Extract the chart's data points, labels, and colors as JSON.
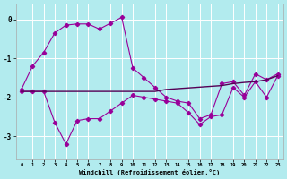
{
  "xlabel": "Windchill (Refroidissement éolien,°C)",
  "background_color": "#b2ebee",
  "line_color": "#990099",
  "line2_color": "#550055",
  "grid_color": "#ffffff",
  "xlim": [
    -0.5,
    23.5
  ],
  "ylim": [
    -3.6,
    0.4
  ],
  "yticks": [
    0,
    -1,
    -2,
    -3
  ],
  "xticks": [
    0,
    1,
    2,
    3,
    4,
    5,
    6,
    7,
    8,
    9,
    10,
    11,
    12,
    13,
    14,
    15,
    16,
    17,
    18,
    19,
    20,
    21,
    22,
    23
  ],
  "line1_x": [
    0,
    1,
    2,
    3,
    4,
    5,
    6,
    7,
    8,
    9,
    10,
    11,
    12,
    13,
    14,
    15,
    16,
    17,
    18,
    19,
    20,
    21,
    22,
    23
  ],
  "line1_y": [
    -1.8,
    -1.2,
    -0.85,
    -0.35,
    -0.15,
    -0.12,
    -0.12,
    -0.25,
    -0.1,
    0.05,
    -1.25,
    -1.5,
    -1.75,
    -2.0,
    -2.1,
    -2.15,
    -2.55,
    -2.45,
    -1.65,
    -1.6,
    -1.95,
    -1.4,
    -1.55,
    -1.4
  ],
  "line2_x": [
    0,
    1,
    2,
    3,
    4,
    5,
    6,
    7,
    8,
    9,
    10,
    11,
    12,
    13,
    14,
    15,
    16,
    17,
    18,
    19,
    20,
    21,
    22,
    23
  ],
  "line2_y": [
    -1.85,
    -1.85,
    -1.85,
    -1.85,
    -1.85,
    -1.85,
    -1.85,
    -1.85,
    -1.85,
    -1.85,
    -1.85,
    -1.85,
    -1.85,
    -1.8,
    -1.78,
    -1.76,
    -1.74,
    -1.72,
    -1.7,
    -1.65,
    -1.62,
    -1.6,
    -1.55,
    -1.45
  ],
  "line3_x": [
    0,
    1,
    2,
    3,
    4,
    5,
    6,
    7,
    8,
    9,
    10,
    11,
    12,
    13,
    14,
    15,
    16,
    17,
    18,
    19,
    20,
    21,
    22,
    23
  ],
  "line3_y": [
    -1.85,
    -1.85,
    -1.85,
    -2.65,
    -3.2,
    -2.6,
    -2.55,
    -2.55,
    -2.35,
    -2.15,
    -1.95,
    -2.0,
    -2.05,
    -2.1,
    -2.15,
    -2.4,
    -2.7,
    -2.5,
    -2.45,
    -1.75,
    -2.0,
    -1.6,
    -2.0,
    -1.45
  ]
}
